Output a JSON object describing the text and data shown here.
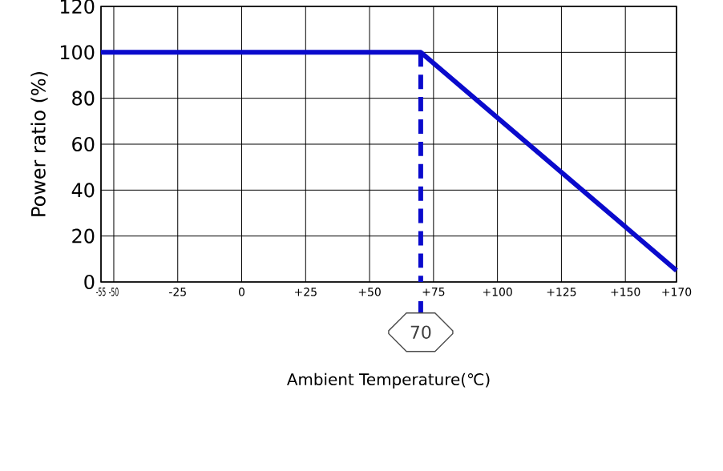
{
  "chart_data": {
    "type": "line",
    "xlabel": "Ambient Temperature(℃)",
    "ylabel": "Power ratio (%)",
    "x": [
      -55,
      70,
      170
    ],
    "series": [
      {
        "color": "#0a0acc",
        "values": [
          100,
          100,
          5
        ]
      }
    ],
    "xlim": [
      -55,
      170
    ],
    "xticks": [
      -55,
      -50,
      -25,
      0,
      {
        "value": 25,
        "label": "+25"
      },
      {
        "value": 50,
        "label": "+50"
      },
      {
        "value": 75,
        "label": "+75"
      },
      {
        "value": 100,
        "label": "+100"
      },
      {
        "value": 125,
        "label": "+125"
      },
      {
        "value": 150,
        "label": "+150"
      },
      {
        "value": 170,
        "label": "+170"
      }
    ],
    "ylim": [
      0,
      120
    ],
    "yticks": [
      0,
      20,
      40,
      60,
      80,
      100,
      120
    ],
    "grid": true,
    "ref_lines": [
      {
        "axis": "x",
        "value": 70,
        "label": "70",
        "color": "#0a0acc",
        "line_style": "dashed"
      }
    ]
  }
}
